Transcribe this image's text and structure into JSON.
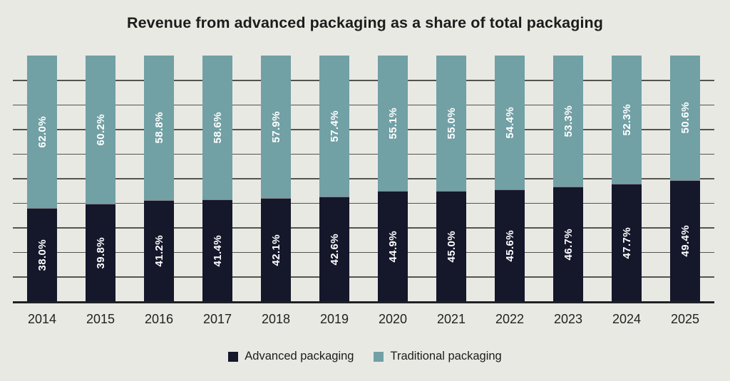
{
  "chart_data": {
    "type": "bar",
    "stacked": true,
    "title": "Revenue from advanced packaging as a share of total packaging",
    "categories": [
      "2014",
      "2015",
      "2016",
      "2017",
      "2018",
      "2019",
      "2020",
      "2021",
      "2022",
      "2023",
      "2024",
      "2025"
    ],
    "series": [
      {
        "name": "Advanced packaging",
        "color": "#15172b",
        "position": "bottom",
        "values": [
          38.0,
          39.8,
          41.2,
          41.4,
          42.1,
          42.6,
          44.9,
          45.0,
          45.6,
          46.7,
          47.7,
          49.4
        ],
        "labels": [
          "38.0%",
          "39.8%",
          "41.2%",
          "41.4%",
          "42.1%",
          "42.6%",
          "44.9%",
          "45.0%",
          "45.6%",
          "46.7%",
          "47.7%",
          "49.4%"
        ]
      },
      {
        "name": "Traditional packaging",
        "color": "#71a0a5",
        "position": "top",
        "values": [
          62.0,
          60.2,
          58.8,
          58.6,
          57.9,
          57.4,
          55.1,
          55.0,
          54.4,
          53.3,
          52.3,
          50.6
        ],
        "labels": [
          "62.0%",
          "60.2%",
          "58.8%",
          "58.6%",
          "57.9%",
          "57.4%",
          "55.1%",
          "55.0%",
          "54.4%",
          "53.3%",
          "52.3%",
          "50.6%"
        ]
      }
    ],
    "xlabel": "",
    "ylabel": "",
    "ylim": [
      0,
      100
    ],
    "grid": true,
    "gridline_step_percent": 10,
    "legend_position": "bottom",
    "bar_label_color": "#ffffff",
    "bar_label_rotation": "vertical"
  },
  "legend": {
    "items": [
      {
        "label": "Advanced packaging",
        "color": "#15172b"
      },
      {
        "label": "Traditional packaging",
        "color": "#71a0a5"
      }
    ]
  },
  "colors": {
    "background": "#e9e9e4",
    "gridline": "#54534e",
    "axis_line": "#202125",
    "title_text": "#1c1c1a",
    "tick_text": "#21211f"
  }
}
